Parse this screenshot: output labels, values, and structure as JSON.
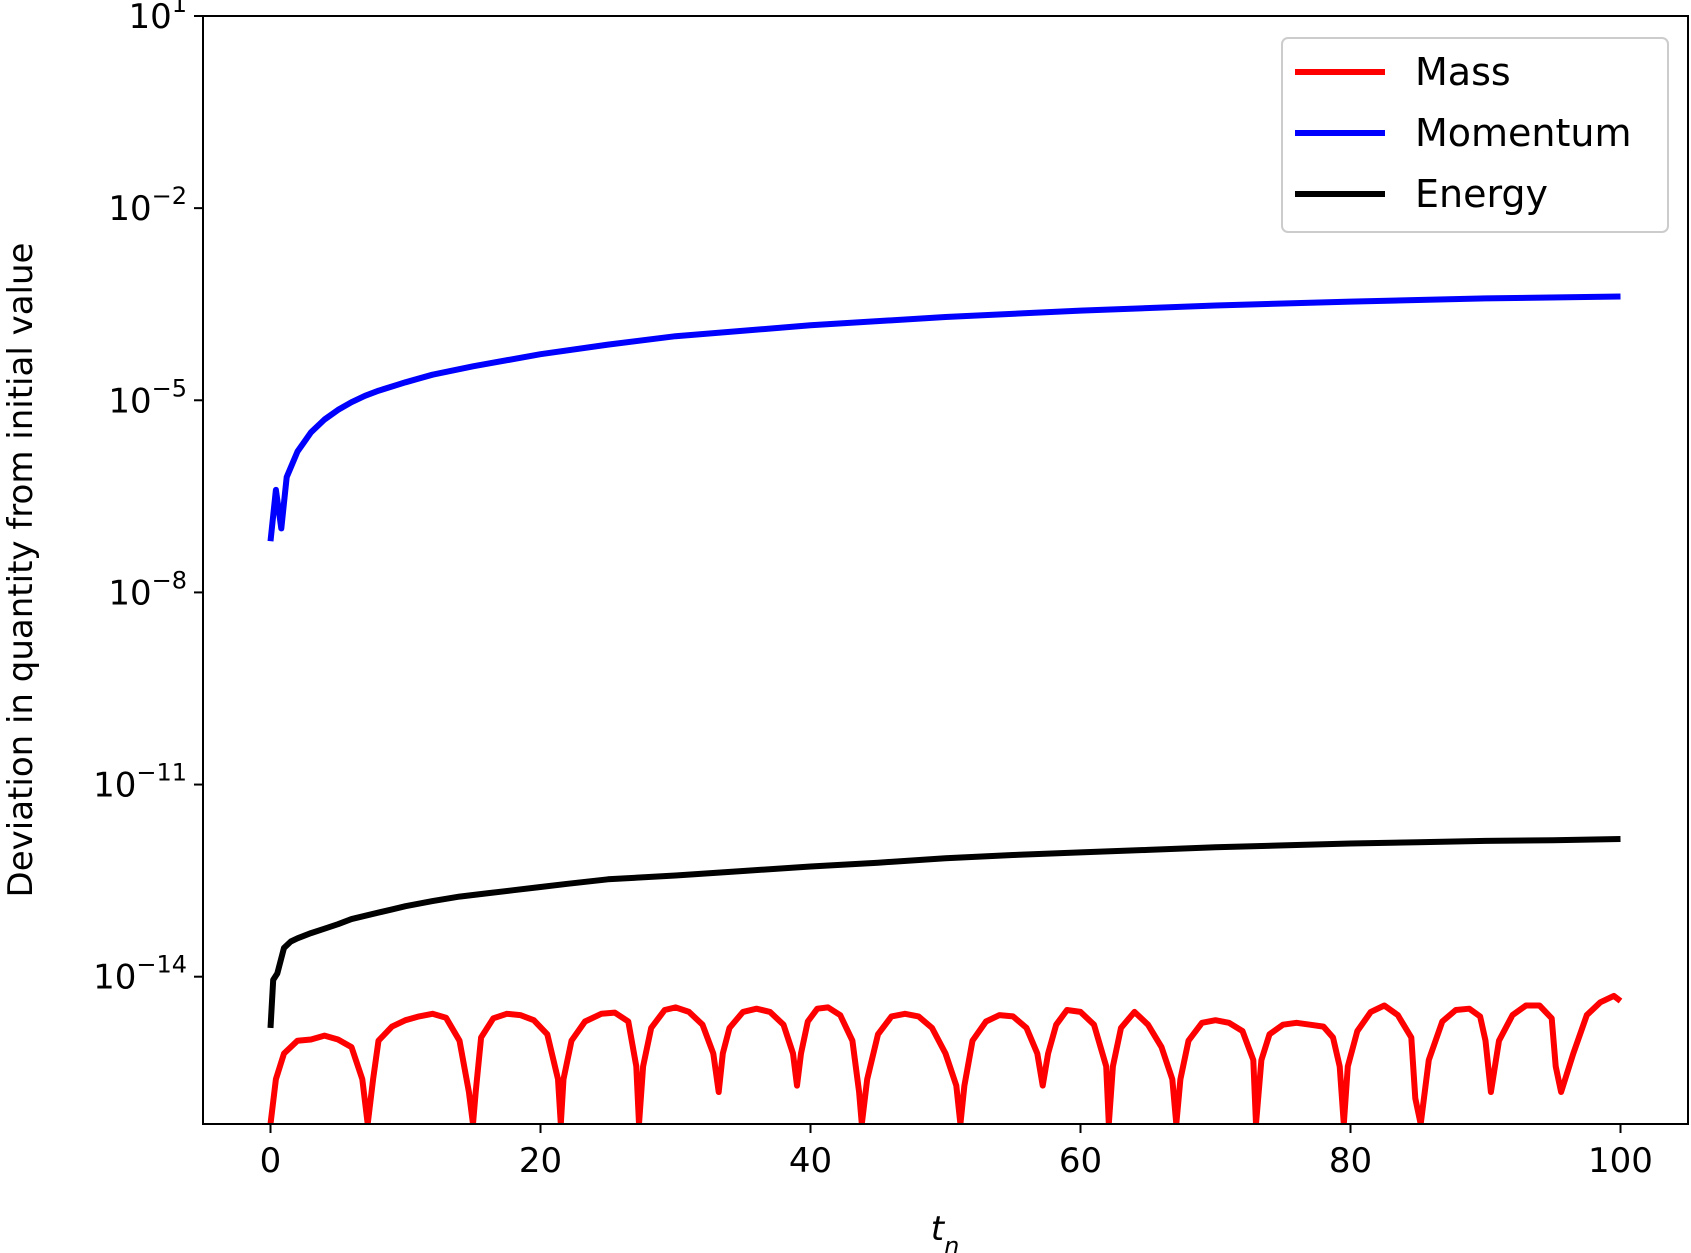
{
  "chart_data": {
    "type": "line",
    "xlabel": "t_n",
    "ylabel": "Deviation in quantity from initial value",
    "xlim": [
      -5,
      105
    ],
    "ylim_log10": [
      -16.3,
      1
    ],
    "y_scale": "log",
    "grid": false,
    "legend_position": "top-right",
    "x_ticks": [
      0,
      20,
      40,
      60,
      80,
      100
    ],
    "y_ticks": [
      {
        "base": "10",
        "exp": "1"
      },
      {
        "base": "10",
        "exp": "−2"
      },
      {
        "base": "10",
        "exp": "−5"
      },
      {
        "base": "10",
        "exp": "−8"
      },
      {
        "base": "10",
        "exp": "−11"
      },
      {
        "base": "10",
        "exp": "−14"
      }
    ],
    "series": [
      {
        "name": "Mass",
        "color": "#ff0000",
        "x": [
          0,
          0.4,
          1,
          2,
          3,
          4,
          5,
          6,
          6.8,
          7.2,
          7.6,
          8,
          9,
          10,
          11,
          12,
          13,
          14,
          14.7,
          15,
          15.2,
          15.6,
          16.5,
          17.5,
          18.5,
          19.5,
          20.5,
          21.3,
          21.5,
          21.7,
          22.3,
          23.3,
          24.5,
          25.5,
          26.5,
          27.1,
          27.3,
          27.6,
          28.2,
          29.2,
          30,
          31,
          32,
          32.8,
          33.2,
          33.5,
          34,
          35,
          36,
          37,
          38,
          38.7,
          39,
          39.3,
          39.8,
          40.5,
          41.3,
          42.2,
          43.1,
          43.6,
          43.8,
          44.2,
          45,
          46,
          47,
          48,
          49,
          50,
          50.8,
          51.1,
          51.4,
          52,
          53,
          54,
          55,
          56,
          56.8,
          57.2,
          57.6,
          58.2,
          59,
          60,
          61,
          61.9,
          62.1,
          62.4,
          63,
          64,
          65,
          66,
          66.8,
          67.1,
          67.4,
          68,
          69,
          70,
          71,
          72,
          72.8,
          73,
          73.4,
          74,
          75,
          76,
          77,
          78,
          78.7,
          79.2,
          79.5,
          79.8,
          80.5,
          81.5,
          82.5,
          83.5,
          84.5,
          84.8,
          85.2,
          85.8,
          86.8,
          87.8,
          88.8,
          89.6,
          90,
          90.4,
          91,
          92,
          93,
          94,
          94.9,
          95.2,
          95.6,
          96.5,
          97.5,
          98.5,
          99.5,
          100
        ],
        "log10_y": [
          -16.3,
          -15.6,
          -15.2,
          -15.0,
          -14.98,
          -14.92,
          -14.98,
          -15.1,
          -15.6,
          -16.3,
          -15.6,
          -15.0,
          -14.78,
          -14.68,
          -14.62,
          -14.58,
          -14.64,
          -15.0,
          -15.8,
          -16.3,
          -15.8,
          -14.95,
          -14.65,
          -14.58,
          -14.6,
          -14.68,
          -14.9,
          -15.6,
          -16.3,
          -15.6,
          -15.0,
          -14.7,
          -14.58,
          -14.56,
          -14.7,
          -15.4,
          -16.3,
          -15.4,
          -14.8,
          -14.52,
          -14.48,
          -14.55,
          -14.75,
          -15.2,
          -15.8,
          -15.2,
          -14.8,
          -14.55,
          -14.5,
          -14.55,
          -14.75,
          -15.2,
          -15.7,
          -15.2,
          -14.7,
          -14.5,
          -14.48,
          -14.6,
          -15.0,
          -15.8,
          -16.3,
          -15.6,
          -14.9,
          -14.62,
          -14.58,
          -14.62,
          -14.8,
          -15.2,
          -15.7,
          -16.3,
          -15.7,
          -15.0,
          -14.7,
          -14.6,
          -14.62,
          -14.8,
          -15.2,
          -15.7,
          -15.2,
          -14.75,
          -14.52,
          -14.55,
          -14.75,
          -15.4,
          -16.3,
          -15.4,
          -14.8,
          -14.55,
          -14.75,
          -15.1,
          -15.6,
          -16.3,
          -15.6,
          -15.0,
          -14.72,
          -14.68,
          -14.72,
          -14.85,
          -15.3,
          -16.3,
          -15.3,
          -14.9,
          -14.75,
          -14.72,
          -14.75,
          -14.78,
          -14.95,
          -15.4,
          -16.3,
          -15.4,
          -14.85,
          -14.55,
          -14.45,
          -14.6,
          -14.95,
          -15.9,
          -16.3,
          -15.3,
          -14.7,
          -14.52,
          -14.5,
          -14.62,
          -15.0,
          -15.8,
          -15.0,
          -14.6,
          -14.45,
          -14.45,
          -14.65,
          -15.4,
          -15.8,
          -15.2,
          -14.6,
          -14.4,
          -14.3,
          -14.38,
          -14.65
        ]
      },
      {
        "name": "Momentum",
        "color": "#0000ff",
        "x": [
          0,
          0.4,
          0.8,
          1.2,
          1.6,
          2,
          2.5,
          3,
          4,
          5,
          6,
          7,
          8,
          10,
          12,
          15,
          20,
          25,
          30,
          40,
          50,
          60,
          70,
          80,
          90,
          100
        ],
        "log10_y": [
          -7.2,
          -6.4,
          -7.0,
          -6.2,
          -6.0,
          -5.8,
          -5.65,
          -5.5,
          -5.3,
          -5.15,
          -5.03,
          -4.93,
          -4.85,
          -4.72,
          -4.6,
          -4.47,
          -4.28,
          -4.13,
          -4.0,
          -3.83,
          -3.7,
          -3.6,
          -3.52,
          -3.46,
          -3.41,
          -3.38
        ]
      },
      {
        "name": "Energy",
        "color": "#000000",
        "x": [
          0,
          0.2,
          0.5,
          1,
          1.5,
          2,
          3,
          4,
          5,
          6,
          7,
          8,
          9,
          10,
          12,
          14,
          16,
          18,
          20,
          22,
          25,
          30,
          35,
          40,
          45,
          50,
          55,
          60,
          65,
          70,
          75,
          80,
          85,
          90,
          95,
          100
        ],
        "log10_y": [
          -14.8,
          -14.05,
          -13.95,
          -13.55,
          -13.45,
          -13.4,
          -13.32,
          -13.25,
          -13.18,
          -13.1,
          -13.05,
          -13.0,
          -12.95,
          -12.9,
          -12.82,
          -12.75,
          -12.7,
          -12.65,
          -12.6,
          -12.55,
          -12.48,
          -12.42,
          -12.35,
          -12.28,
          -12.22,
          -12.15,
          -12.1,
          -12.06,
          -12.02,
          -11.98,
          -11.95,
          -11.92,
          -11.9,
          -11.88,
          -11.87,
          -11.85
        ]
      }
    ]
  }
}
